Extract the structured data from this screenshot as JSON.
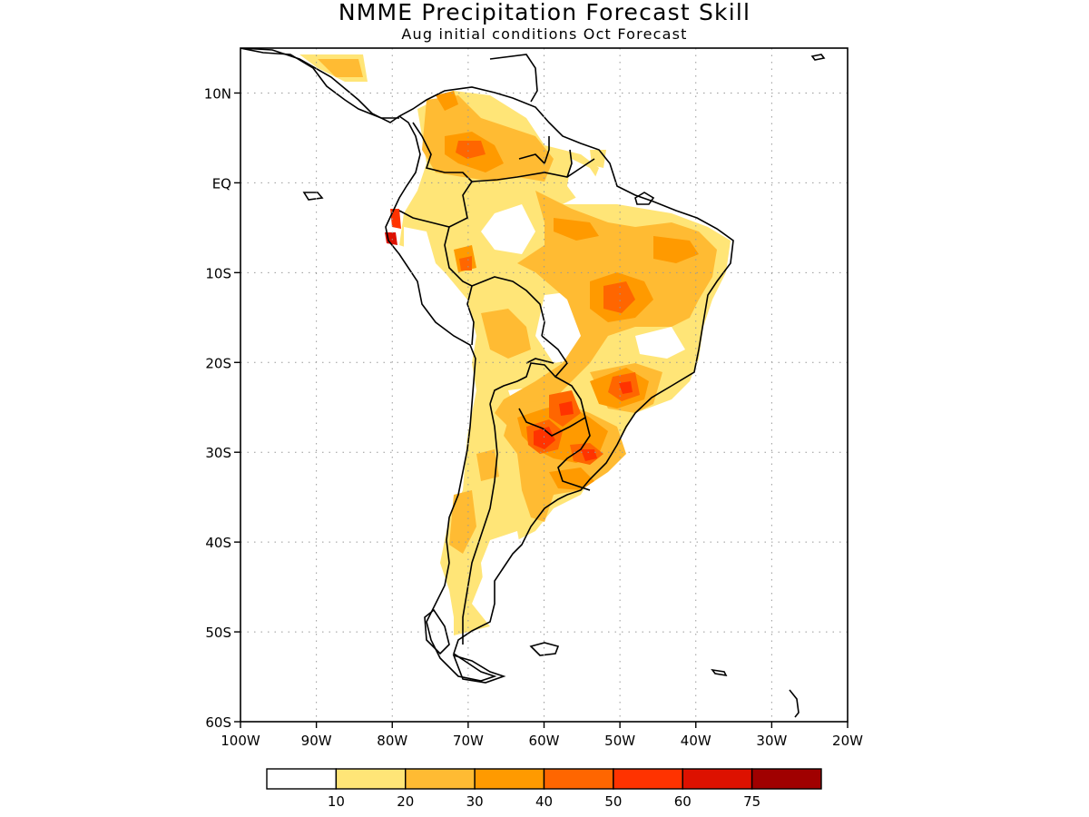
{
  "title": "NMME Precipitation Forecast Skill",
  "subtitle": "Aug initial conditions  Oct Forecast",
  "map": {
    "region": "South America",
    "lat_range": [
      -60,
      15
    ],
    "lon_range": [
      -100,
      -20
    ],
    "lat_ticks": [
      {
        "lat": 10,
        "label": "10N"
      },
      {
        "lat": 0,
        "label": "EQ"
      },
      {
        "lat": -10,
        "label": "10S"
      },
      {
        "lat": -20,
        "label": "20S"
      },
      {
        "lat": -30,
        "label": "30S"
      },
      {
        "lat": -40,
        "label": "40S"
      },
      {
        "lat": -50,
        "label": "50S"
      },
      {
        "lat": -60,
        "label": "60S"
      }
    ],
    "lon_ticks": [
      {
        "lon": -100,
        "label": "100W"
      },
      {
        "lon": -90,
        "label": "90W"
      },
      {
        "lon": -80,
        "label": "80W"
      },
      {
        "lon": -70,
        "label": "70W"
      },
      {
        "lon": -60,
        "label": "60W"
      },
      {
        "lon": -50,
        "label": "50W"
      },
      {
        "lon": -40,
        "label": "40W"
      },
      {
        "lon": -30,
        "label": "30W"
      },
      {
        "lon": -20,
        "label": "20W"
      }
    ],
    "grid": "dotted"
  },
  "colorbar": {
    "colors": [
      "#ffffff",
      "#ffe577",
      "#ffbb33",
      "#ff9a00",
      "#ff6600",
      "#ff3300",
      "#dd1100",
      "#a00000"
    ],
    "labels": [
      "10",
      "20",
      "30",
      "40",
      "50",
      "60",
      "75"
    ]
  }
}
